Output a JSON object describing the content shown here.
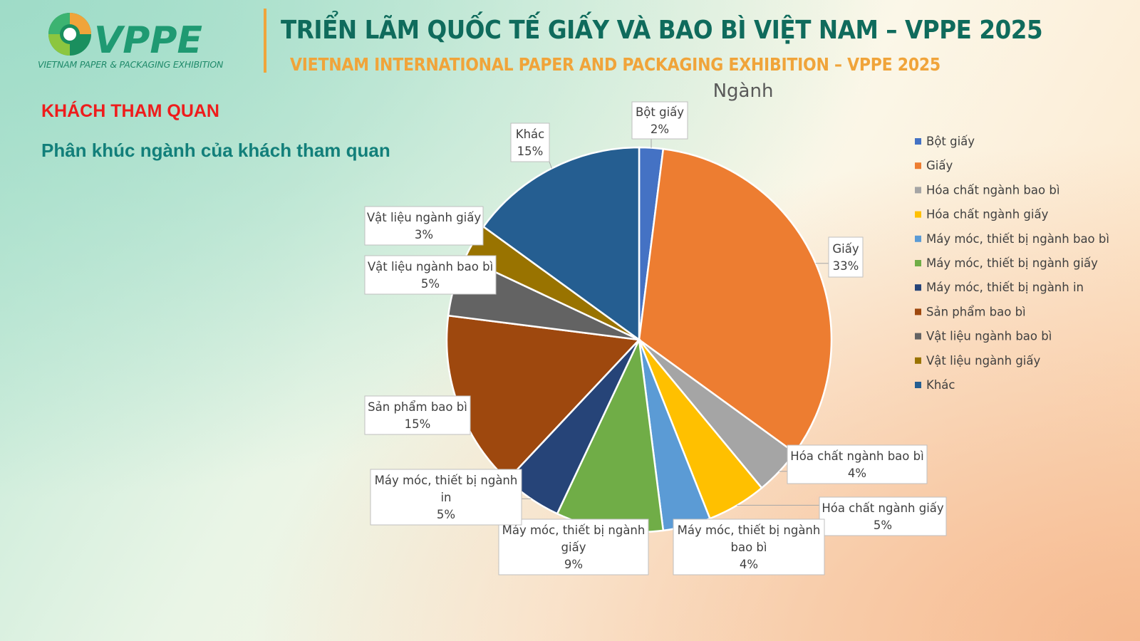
{
  "header": {
    "logo_wordmark": "VPPE",
    "logo_tagline": "VIETNAM PAPER & PACKAGING EXHIBITION",
    "title_vn": "TRIỂN LÃM QUỐC TẾ GIẤY VÀ BAO BÌ VIỆT NAM – VPPE 2025",
    "title_en": "VIETNAM INTERNATIONAL  PAPER AND PACKAGING EXHIBITION – VPPE 2025"
  },
  "section": {
    "title": "KHÁCH THAM QUAN",
    "subtitle": "Phân khúc ngành của khách tham quan"
  },
  "chart_data": {
    "type": "pie",
    "title": "Ngành",
    "legend_position": "right",
    "slices": [
      {
        "label": "Bột giấy",
        "value": 2,
        "color": "#4472c4"
      },
      {
        "label": "Giấy",
        "value": 33,
        "color": "#ed7d31"
      },
      {
        "label": "Hóa chất ngành bao bì",
        "value": 4,
        "color": "#a5a5a5"
      },
      {
        "label": "Hóa chất ngành giấy",
        "value": 5,
        "color": "#ffc000"
      },
      {
        "label": "Máy móc, thiết bị ngành bao bì",
        "value": 4,
        "color": "#5b9bd5"
      },
      {
        "label": "Máy móc, thiết bị ngành giấy",
        "value": 9,
        "color": "#70ad47"
      },
      {
        "label": "Máy móc, thiết bị ngành in",
        "value": 5,
        "color": "#264478"
      },
      {
        "label": "Sản phẩm bao bì",
        "value": 15,
        "color": "#9e480e"
      },
      {
        "label": "Vật liệu ngành bao bì",
        "value": 5,
        "color": "#636363"
      },
      {
        "label": "Vật liệu ngành giấy",
        "value": 3,
        "color": "#997300"
      },
      {
        "label": "Khác",
        "value": 15,
        "color": "#255e91"
      }
    ]
  }
}
